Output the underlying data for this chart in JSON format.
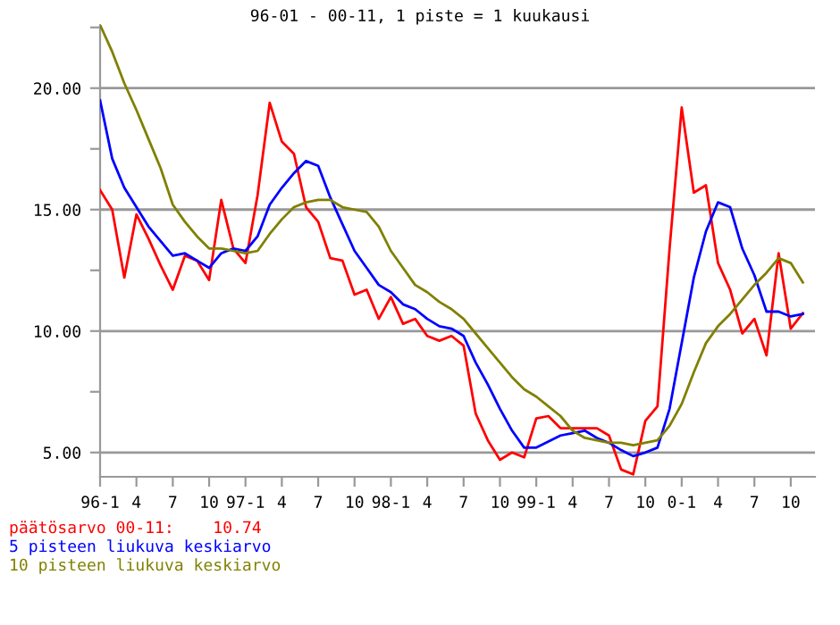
{
  "chart_data": {
    "type": "line",
    "title": "96-01 - 00-11, 1 piste = 1 kuukausi",
    "categories": [
      "96-1",
      null,
      null,
      "4",
      null,
      null,
      "7",
      null,
      null,
      "10",
      null,
      null,
      "97-1",
      null,
      null,
      "4",
      null,
      null,
      "7",
      null,
      null,
      "10",
      null,
      null,
      "98-1",
      null,
      null,
      "4",
      null,
      null,
      "7",
      null,
      null,
      "10",
      null,
      null,
      "99-1",
      null,
      null,
      "4",
      null,
      null,
      "7",
      null,
      null,
      "10",
      null,
      null,
      "0-1",
      null,
      null,
      "4",
      null,
      null,
      "7",
      null,
      null,
      "10",
      null
    ],
    "series": [
      {
        "name": "päätösarvo 00-11:    10.74",
        "color": "#ff0000",
        "values": [
          15.8,
          15.0,
          12.2,
          14.8,
          13.8,
          12.7,
          11.7,
          13.1,
          12.9,
          12.1,
          15.4,
          13.4,
          12.8,
          15.6,
          19.4,
          17.8,
          17.3,
          15.1,
          14.5,
          13.0,
          12.9,
          11.5,
          11.7,
          10.5,
          11.4,
          10.3,
          10.5,
          9.8,
          9.6,
          9.8,
          9.4,
          6.6,
          5.5,
          4.7,
          5.0,
          4.8,
          6.4,
          6.5,
          6.0,
          6.0,
          6.0,
          6.0,
          5.7,
          4.3,
          4.1,
          6.3,
          6.9,
          13.4,
          19.2,
          15.7,
          16.0,
          12.8,
          11.7,
          9.9,
          10.5,
          9.0,
          13.2,
          10.1,
          10.74
        ]
      },
      {
        "name": "5 pisteen liukuva keskiarvo",
        "color": "#0000ff",
        "values": [
          19.5,
          17.1,
          15.9,
          15.1,
          14.3,
          13.7,
          13.1,
          13.2,
          12.9,
          12.6,
          13.2,
          13.4,
          13.3,
          13.9,
          15.2,
          15.9,
          16.5,
          17.0,
          16.8,
          15.5,
          14.4,
          13.3,
          12.6,
          11.9,
          11.6,
          11.1,
          10.9,
          10.5,
          10.2,
          10.1,
          9.8,
          8.7,
          7.8,
          6.8,
          5.9,
          5.2,
          5.2,
          5.45,
          5.7,
          5.8,
          5.9,
          5.6,
          5.4,
          5.1,
          4.85,
          5.0,
          5.2,
          6.8,
          9.5,
          12.2,
          14.1,
          15.3,
          15.1,
          13.4,
          12.3,
          10.8,
          10.8,
          10.6,
          10.7
        ]
      },
      {
        "name": "10 pisteen liukuva keskiarvo",
        "color": "#808000",
        "values": [
          22.6,
          21.5,
          20.2,
          19.1,
          17.9,
          16.7,
          15.2,
          14.5,
          13.9,
          13.4,
          13.4,
          13.3,
          13.2,
          13.3,
          14.0,
          14.6,
          15.1,
          15.3,
          15.4,
          15.4,
          15.1,
          15.0,
          14.9,
          14.3,
          13.3,
          12.6,
          11.9,
          11.6,
          11.2,
          10.9,
          10.5,
          9.9,
          9.3,
          8.7,
          8.1,
          7.6,
          7.3,
          6.9,
          6.5,
          5.9,
          5.6,
          5.5,
          5.4,
          5.4,
          5.3,
          5.4,
          5.5,
          6.1,
          7.0,
          8.3,
          9.5,
          10.2,
          10.7,
          11.3,
          11.9,
          12.4,
          13.0,
          12.8,
          12.0
        ]
      }
    ],
    "ylim": [
      4.0,
      22.6
    ],
    "yticks": [
      {
        "value": 5,
        "label": "5.00"
      },
      {
        "value": 7.5,
        "label": null
      },
      {
        "value": 10,
        "label": "10.00"
      },
      {
        "value": 12.5,
        "label": null
      },
      {
        "value": 15,
        "label": "15.00"
      },
      {
        "value": 17.5,
        "label": null
      },
      {
        "value": 20,
        "label": "20.00"
      },
      {
        "value": 22.5,
        "label": null
      }
    ],
    "grid": "y",
    "legend": "bottom",
    "marker": "none",
    "line_style": "solid"
  }
}
